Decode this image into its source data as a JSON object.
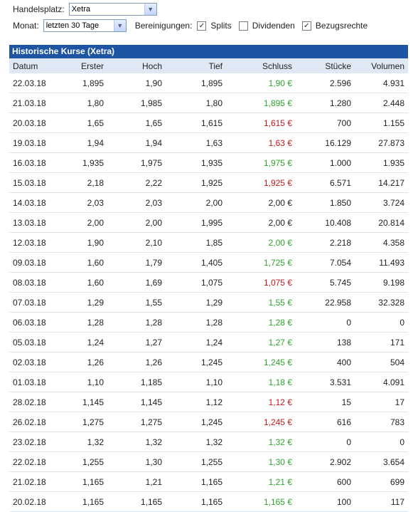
{
  "filters": {
    "exchange_label": "Handelsplatz:",
    "exchange_value": "Xetra",
    "period_label": "Monat:",
    "period_value": "letzten 30 Tage",
    "adjustments_label": "Bereinigungen:",
    "splits_label": "Splits",
    "splits_checked": true,
    "dividends_label": "Dividenden",
    "dividends_checked": false,
    "rights_label": "Bezugsrechte",
    "rights_checked": true
  },
  "table": {
    "title": "Historische Kurse (Xetra)",
    "columns": [
      "Datum",
      "Erster",
      "Hoch",
      "Tief",
      "Schluss",
      "Stücke",
      "Volumen"
    ],
    "rows": [
      {
        "date": "22.03.18",
        "first": "1,895",
        "high": "1,90",
        "low": "1,895",
        "close": "1,90 €",
        "trend": "up",
        "units": "2.596",
        "volume": "4.931"
      },
      {
        "date": "21.03.18",
        "first": "1,80",
        "high": "1,985",
        "low": "1,80",
        "close": "1,895 €",
        "trend": "up",
        "units": "1.280",
        "volume": "2.448"
      },
      {
        "date": "20.03.18",
        "first": "1,65",
        "high": "1,65",
        "low": "1,615",
        "close": "1,615 €",
        "trend": "down",
        "units": "700",
        "volume": "1.155"
      },
      {
        "date": "19.03.18",
        "first": "1,94",
        "high": "1,94",
        "low": "1,63",
        "close": "1,63 €",
        "trend": "down",
        "units": "16.129",
        "volume": "27.873"
      },
      {
        "date": "16.03.18",
        "first": "1,935",
        "high": "1,975",
        "low": "1,935",
        "close": "1,975 €",
        "trend": "up",
        "units": "1.000",
        "volume": "1.935"
      },
      {
        "date": "15.03.18",
        "first": "2,18",
        "high": "2,22",
        "low": "1,925",
        "close": "1,925 €",
        "trend": "down",
        "units": "6.571",
        "volume": "14.217"
      },
      {
        "date": "14.03.18",
        "first": "2,03",
        "high": "2,03",
        "low": "2,00",
        "close": "2,00 €",
        "trend": "flat",
        "units": "1.850",
        "volume": "3.724"
      },
      {
        "date": "13.03.18",
        "first": "2,00",
        "high": "2,00",
        "low": "1,995",
        "close": "2,00 €",
        "trend": "flat",
        "units": "10.408",
        "volume": "20.814"
      },
      {
        "date": "12.03.18",
        "first": "1,90",
        "high": "2,10",
        "low": "1,85",
        "close": "2,00 €",
        "trend": "up",
        "units": "2.218",
        "volume": "4.358"
      },
      {
        "date": "09.03.18",
        "first": "1,60",
        "high": "1,79",
        "low": "1,405",
        "close": "1,725 €",
        "trend": "up",
        "units": "7.054",
        "volume": "11.493"
      },
      {
        "date": "08.03.18",
        "first": "1,60",
        "high": "1,69",
        "low": "1,075",
        "close": "1,075 €",
        "trend": "down",
        "units": "5.745",
        "volume": "9.198"
      },
      {
        "date": "07.03.18",
        "first": "1,29",
        "high": "1,55",
        "low": "1,29",
        "close": "1,55 €",
        "trend": "up",
        "units": "22.958",
        "volume": "32.328"
      },
      {
        "date": "06.03.18",
        "first": "1,28",
        "high": "1,28",
        "low": "1,28",
        "close": "1,28 €",
        "trend": "up",
        "units": "0",
        "volume": "0"
      },
      {
        "date": "05.03.18",
        "first": "1,24",
        "high": "1,27",
        "low": "1,24",
        "close": "1,27 €",
        "trend": "up",
        "units": "138",
        "volume": "171"
      },
      {
        "date": "02.03.18",
        "first": "1,26",
        "high": "1,26",
        "low": "1,245",
        "close": "1,245 €",
        "trend": "up",
        "units": "400",
        "volume": "504"
      },
      {
        "date": "01.03.18",
        "first": "1,10",
        "high": "1,185",
        "low": "1,10",
        "close": "1,18 €",
        "trend": "up",
        "units": "3.531",
        "volume": "4.091"
      },
      {
        "date": "28.02.18",
        "first": "1,145",
        "high": "1,145",
        "low": "1,12",
        "close": "1,12 €",
        "trend": "down",
        "units": "15",
        "volume": "17"
      },
      {
        "date": "26.02.18",
        "first": "1,275",
        "high": "1,275",
        "low": "1,245",
        "close": "1,245 €",
        "trend": "down",
        "units": "616",
        "volume": "783"
      },
      {
        "date": "23.02.18",
        "first": "1,32",
        "high": "1,32",
        "low": "1,32",
        "close": "1,32 €",
        "trend": "up",
        "units": "0",
        "volume": "0"
      },
      {
        "date": "22.02.18",
        "first": "1,255",
        "high": "1,30",
        "low": "1,255",
        "close": "1,30 €",
        "trend": "up",
        "units": "2.902",
        "volume": "3.654"
      },
      {
        "date": "21.02.18",
        "first": "1,165",
        "high": "1,21",
        "low": "1,165",
        "close": "1,21 €",
        "trend": "up",
        "units": "600",
        "volume": "699"
      },
      {
        "date": "20.02.18",
        "first": "1,165",
        "high": "1,165",
        "low": "1,165",
        "close": "1,165 €",
        "trend": "up",
        "units": "100",
        "volume": "117"
      }
    ]
  },
  "colors": {
    "header_bg": "#1e55a3",
    "column_header_bg": "#dfe9f5",
    "up": "#2ea52e",
    "down": "#c0181c"
  }
}
